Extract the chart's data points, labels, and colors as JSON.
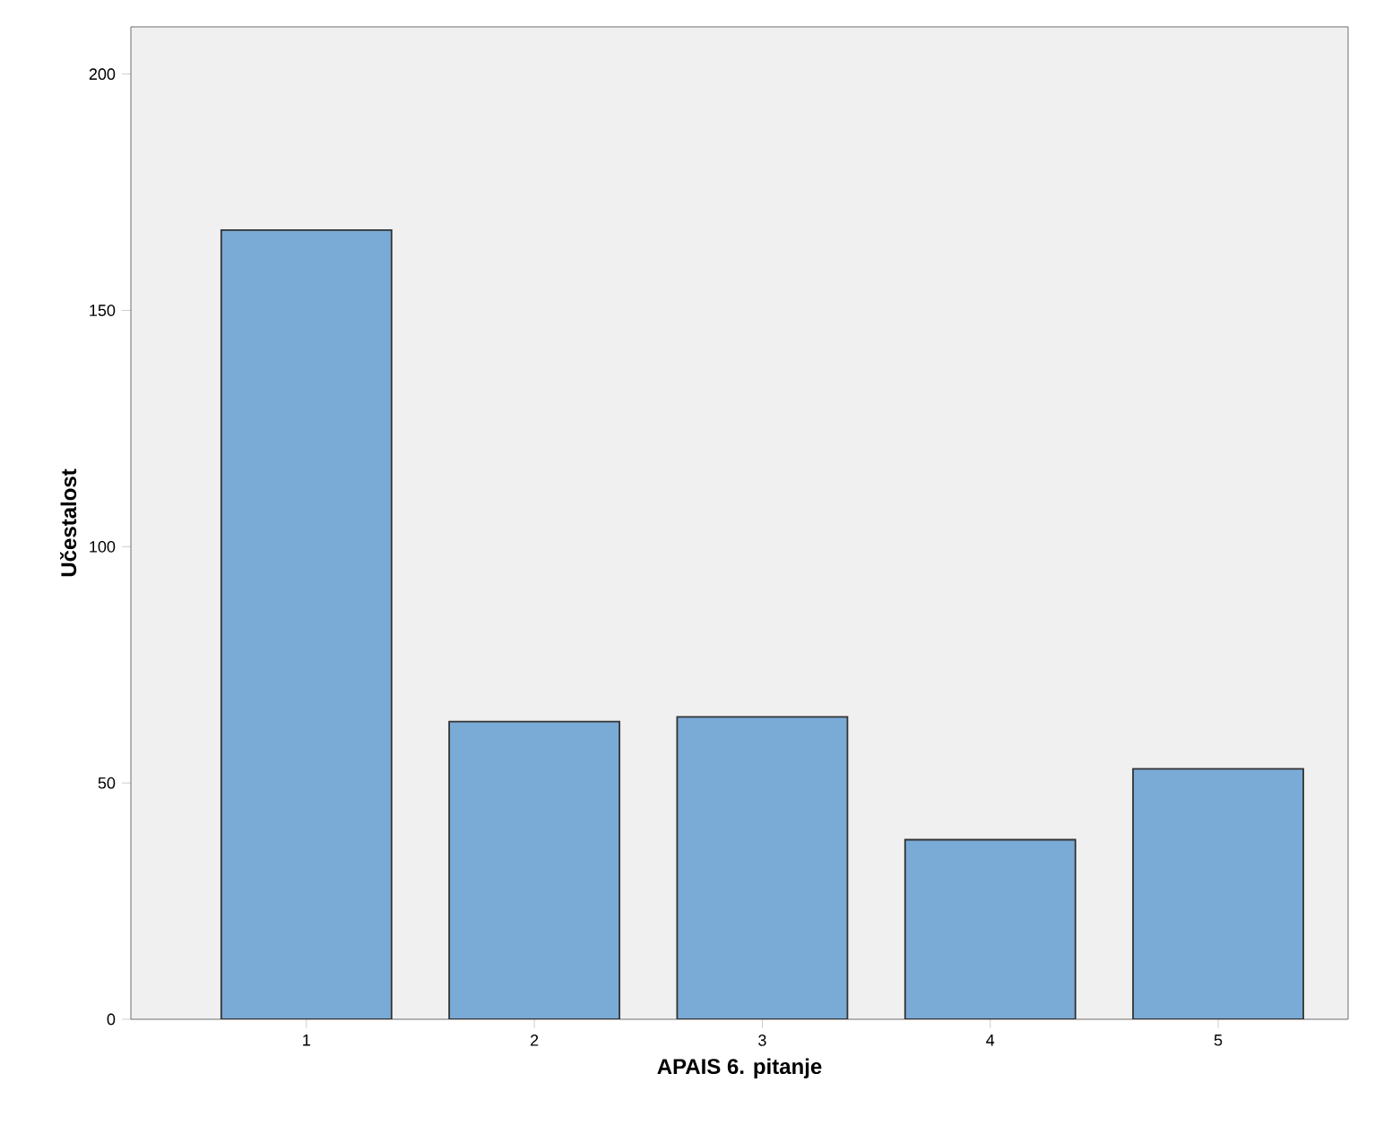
{
  "chart_data": {
    "type": "bar",
    "xlabel": "APAIS 6. pitanje",
    "ylabel": "Učestalost",
    "categories": [
      "1",
      "2",
      "3",
      "4",
      "5"
    ],
    "values": [
      167,
      63,
      64,
      38,
      53
    ],
    "color": "#7aaad6",
    "ylim": [
      0,
      210
    ],
    "yticks": [
      0,
      50,
      100,
      150,
      200
    ],
    "grid": false
  }
}
